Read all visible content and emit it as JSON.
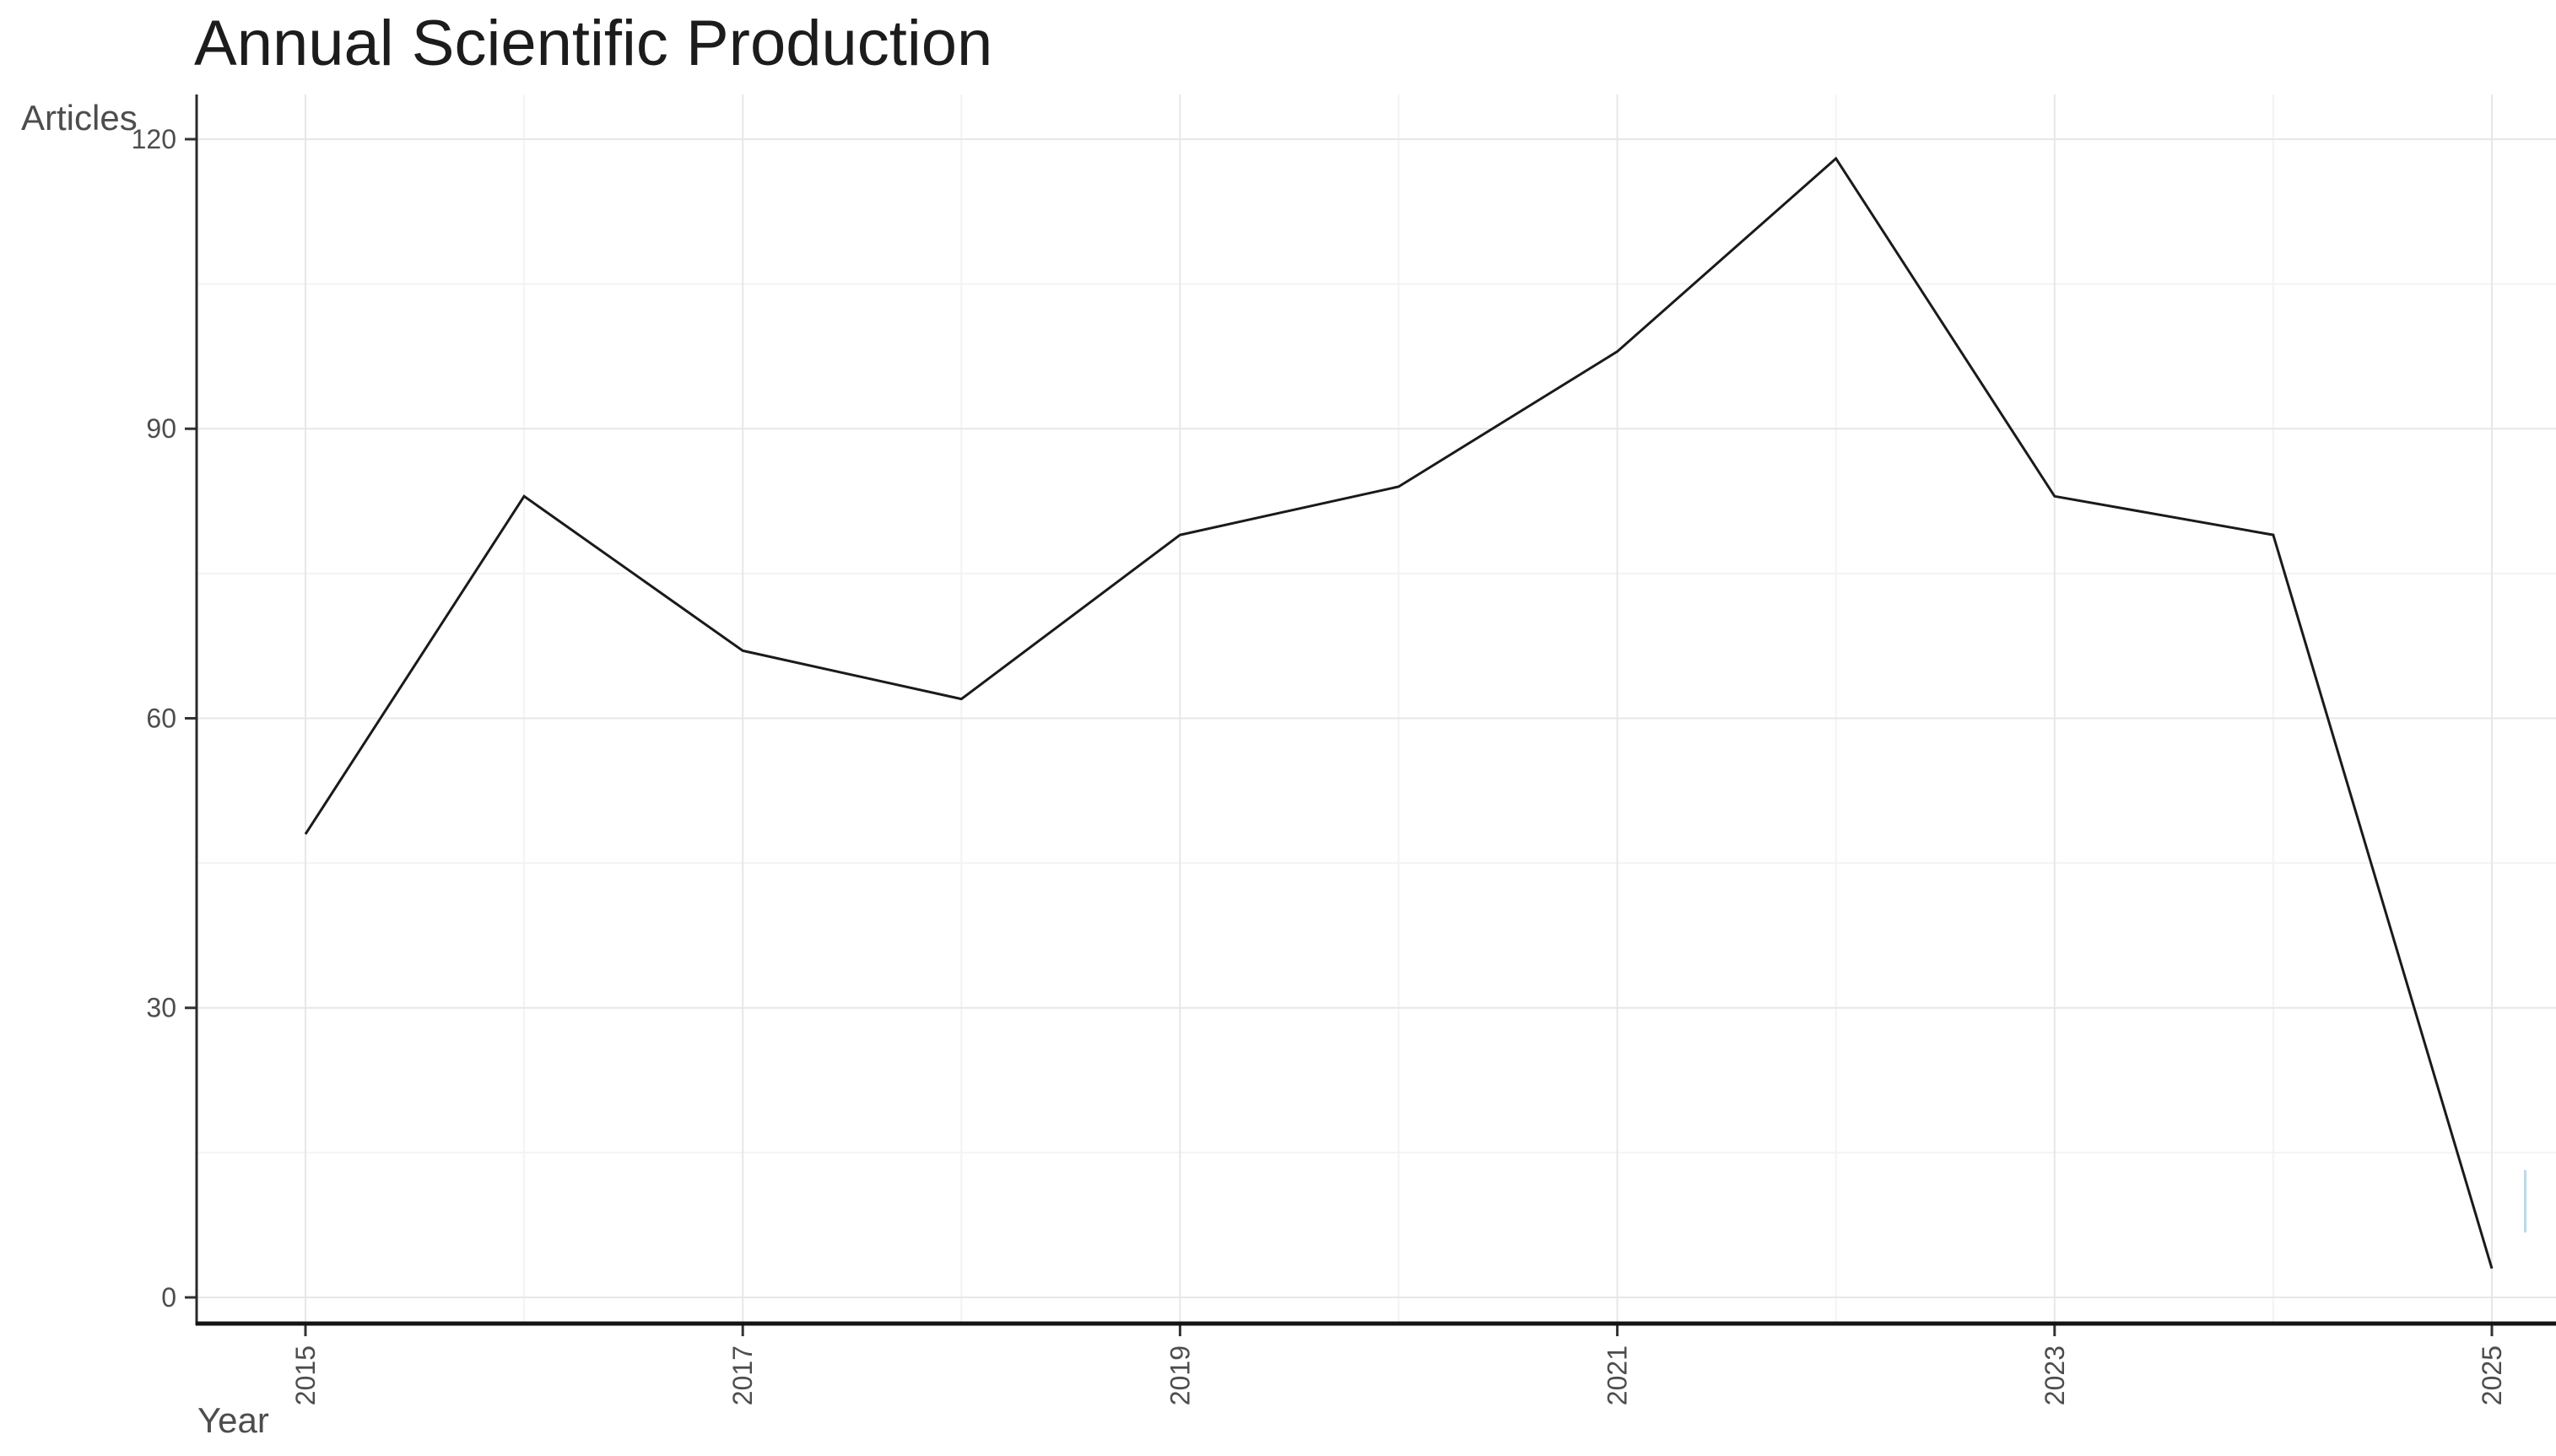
{
  "page": {
    "background": "#ffffff"
  },
  "chart_data": {
    "type": "line",
    "title": "Annual Scientific Production",
    "xlabel": "Year",
    "ylabel": "Articles",
    "x": [
      2015,
      2016,
      2017,
      2018,
      2019,
      2020,
      2021,
      2022,
      2023,
      2024,
      2025
    ],
    "series": [
      {
        "name": "Articles",
        "values": [
          48,
          83,
          67,
          62,
          79,
          84,
          98,
          118,
          83,
          79,
          3
        ]
      }
    ],
    "x_tick_labels": [
      "2015",
      "2017",
      "2019",
      "2021",
      "2023",
      "2025"
    ],
    "x_tick_years": [
      2015,
      2017,
      2019,
      2021,
      2023,
      2025
    ],
    "y_ticks": [
      0,
      30,
      60,
      90,
      120
    ],
    "y_tick_labels": [
      "0",
      "30",
      "60",
      "90",
      "120"
    ],
    "ylim": [
      0,
      124.6
    ],
    "xlim": [
      2014.5,
      2025.3
    ],
    "legend": "none",
    "grid": {
      "major": true,
      "minor": true
    },
    "x_tick_rotation_deg": 90
  },
  "style_colors": {
    "line": "#1a1a1a",
    "x_axis_line": "#141414",
    "y_axis_line": "#2a2a2a",
    "tick_mark": "#333333",
    "tick_label": "#4d4d4d",
    "axis_title": "#4d4d4d",
    "title": "#1c1c1c",
    "grid_major": "#e7e7e7",
    "grid_minor": "#f3f3f3",
    "artifact_blue": "#aed3e6"
  }
}
